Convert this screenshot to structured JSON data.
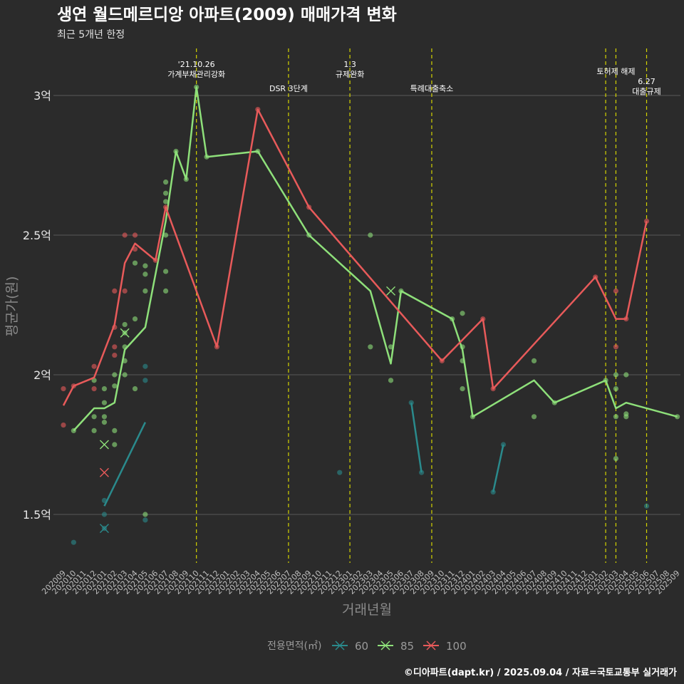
{
  "title": "생연 월드메르디앙 아파트(2009) 매매가격 변화",
  "subtitle": "최근 5개년 한정",
  "caption": "©디아파트(dapt.kr) / 2025.09.04 / 자료=국토교통부 실거래가",
  "colors": {
    "background": "#2b2b2b",
    "grid": "#5a5a5a",
    "s60": "#2a8a8c",
    "s85": "#8ee07a",
    "s100": "#e85a5a",
    "event": "#d4d400"
  },
  "chart_data": {
    "type": "line",
    "title": "생연 월드메르디앙 아파트(2009) 매매가격 변화",
    "subtitle": "최근 5개년 한정",
    "xlabel": "거래년월",
    "ylabel": "평균가(원)",
    "ylim": [
      1.3,
      3.2
    ],
    "categories": [
      "202009",
      "202010",
      "202011",
      "202012",
      "202101",
      "202102",
      "202103",
      "202104",
      "202105",
      "202106",
      "202107",
      "202108",
      "202109",
      "202110",
      "202111",
      "202112",
      "202201",
      "202202",
      "202203",
      "202204",
      "202205",
      "202206",
      "202207",
      "202208",
      "202209",
      "202210",
      "202211",
      "202212",
      "202301",
      "202302",
      "202303",
      "202304",
      "202305",
      "202306",
      "202307",
      "202308",
      "202309",
      "202310",
      "202311",
      "202312",
      "202401",
      "202402",
      "202403",
      "202404",
      "202405",
      "202406",
      "202407",
      "202408",
      "202409",
      "202410",
      "202411",
      "202412",
      "202501",
      "202502",
      "202503",
      "202504",
      "202505",
      "202506",
      "202507",
      "202508",
      "202509"
    ],
    "y_ticks": [
      {
        "value": 1.5,
        "label": "1.5억"
      },
      {
        "value": 2.0,
        "label": "2억"
      },
      {
        "value": 2.5,
        "label": "2.5억"
      },
      {
        "value": 3.0,
        "label": "3억"
      }
    ],
    "legend_title": "전용면적(㎡)",
    "series": [
      {
        "name": "60",
        "color": "#2a8a8c",
        "line": [
          [
            4,
            1.53
          ],
          [
            8,
            1.83
          ]
        ],
        "line2": [
          [
            34,
            1.9
          ],
          [
            35,
            1.65
          ]
        ],
        "line3": [
          [
            42,
            1.58
          ],
          [
            43,
            1.75
          ]
        ],
        "points": [
          [
            1,
            1.4
          ],
          [
            4,
            1.55
          ],
          [
            4,
            1.5
          ],
          [
            4,
            1.45
          ],
          [
            8,
            2.03
          ],
          [
            8,
            1.98
          ],
          [
            8,
            1.48
          ],
          [
            27,
            1.65
          ],
          [
            34,
            1.9
          ],
          [
            35,
            1.65
          ],
          [
            42,
            1.58
          ],
          [
            43,
            1.75
          ],
          [
            57,
            1.53
          ]
        ],
        "crosses": [
          [
            4,
            1.45
          ]
        ]
      },
      {
        "name": "85",
        "color": "#8ee07a",
        "line": [
          [
            1,
            1.8
          ],
          [
            3,
            1.88
          ],
          [
            4,
            1.88
          ],
          [
            5,
            1.9
          ],
          [
            6,
            2.09
          ],
          [
            8,
            2.17
          ],
          [
            10,
            2.55
          ],
          [
            11,
            2.8
          ],
          [
            12,
            2.7
          ],
          [
            13,
            3.03
          ],
          [
            14,
            2.78
          ],
          [
            19,
            2.8
          ],
          [
            24,
            2.5
          ],
          [
            30,
            2.3
          ],
          [
            32,
            2.04
          ],
          [
            33,
            2.3
          ],
          [
            38,
            2.2
          ],
          [
            39,
            2.09
          ],
          [
            40,
            1.85
          ],
          [
            46,
            1.98
          ],
          [
            48,
            1.9
          ],
          [
            53,
            1.98
          ],
          [
            54,
            1.88
          ],
          [
            55,
            1.9
          ],
          [
            60,
            1.85
          ]
        ],
        "points": [
          [
            1,
            1.8
          ],
          [
            3,
            1.98
          ],
          [
            3,
            1.85
          ],
          [
            3,
            1.8
          ],
          [
            4,
            1.95
          ],
          [
            4,
            1.9
          ],
          [
            4,
            1.85
          ],
          [
            4,
            1.83
          ],
          [
            5,
            2.0
          ],
          [
            5,
            1.96
          ],
          [
            5,
            1.8
          ],
          [
            5,
            1.75
          ],
          [
            6,
            2.18
          ],
          [
            6,
            2.15
          ],
          [
            6,
            2.1
          ],
          [
            6,
            2.05
          ],
          [
            6,
            2.0
          ],
          [
            7,
            2.4
          ],
          [
            7,
            2.2
          ],
          [
            7,
            1.95
          ],
          [
            8,
            2.39
          ],
          [
            8,
            2.36
          ],
          [
            8,
            2.3
          ],
          [
            8,
            1.5
          ],
          [
            10,
            2.69
          ],
          [
            10,
            2.65
          ],
          [
            10,
            2.62
          ],
          [
            10,
            2.5
          ],
          [
            10,
            2.37
          ],
          [
            10,
            2.3
          ],
          [
            11,
            2.8
          ],
          [
            12,
            2.7
          ],
          [
            13,
            3.03
          ],
          [
            14,
            2.78
          ],
          [
            19,
            2.8
          ],
          [
            24,
            2.5
          ],
          [
            30,
            2.5
          ],
          [
            30,
            2.1
          ],
          [
            32,
            2.1
          ],
          [
            32,
            1.98
          ],
          [
            33,
            2.3
          ],
          [
            38,
            2.2
          ],
          [
            39,
            2.22
          ],
          [
            39,
            2.1
          ],
          [
            39,
            2.05
          ],
          [
            39,
            1.95
          ],
          [
            40,
            1.85
          ],
          [
            46,
            2.05
          ],
          [
            46,
            1.85
          ],
          [
            48,
            1.9
          ],
          [
            53,
            1.98
          ],
          [
            54,
            2.0
          ],
          [
            54,
            1.95
          ],
          [
            54,
            1.85
          ],
          [
            54,
            1.7
          ],
          [
            55,
            2.0
          ],
          [
            55,
            1.86
          ],
          [
            55,
            1.85
          ],
          [
            60,
            1.85
          ]
        ],
        "crosses": [
          [
            4,
            1.75
          ],
          [
            6,
            2.15
          ],
          [
            32,
            2.3
          ]
        ]
      },
      {
        "name": "100",
        "color": "#e85a5a",
        "line": [
          [
            0,
            1.89
          ],
          [
            1,
            1.96
          ],
          [
            3,
            1.99
          ],
          [
            5,
            2.18
          ],
          [
            6,
            2.4
          ],
          [
            7,
            2.47
          ],
          [
            9,
            2.41
          ],
          [
            10,
            2.6
          ],
          [
            15,
            2.1
          ],
          [
            19,
            2.95
          ],
          [
            24,
            2.6
          ],
          [
            37,
            2.05
          ],
          [
            41,
            2.2
          ],
          [
            42,
            1.95
          ],
          [
            52,
            2.35
          ],
          [
            54,
            2.2
          ],
          [
            55,
            2.2
          ],
          [
            57,
            2.55
          ]
        ],
        "points": [
          [
            0,
            1.95
          ],
          [
            0,
            1.82
          ],
          [
            1,
            1.96
          ],
          [
            3,
            2.03
          ],
          [
            3,
            1.95
          ],
          [
            5,
            2.3
          ],
          [
            5,
            2.17
          ],
          [
            6,
            2.5
          ],
          [
            6,
            2.3
          ],
          [
            7,
            2.5
          ],
          [
            7,
            2.45
          ],
          [
            5,
            2.1
          ],
          [
            5,
            2.07
          ],
          [
            9,
            2.41
          ],
          [
            10,
            2.6
          ],
          [
            15,
            2.1
          ],
          [
            19,
            2.95
          ],
          [
            24,
            2.6
          ],
          [
            37,
            2.05
          ],
          [
            41,
            2.2
          ],
          [
            42,
            1.95
          ],
          [
            52,
            2.35
          ],
          [
            54,
            2.3
          ],
          [
            54,
            2.1
          ],
          [
            55,
            2.2
          ],
          [
            57,
            2.55
          ]
        ],
        "crosses": [
          [
            4,
            1.65
          ]
        ]
      }
    ],
    "events": [
      {
        "x": 13,
        "lines": [
          "'21.10.26",
          "가계부채관리강화"
        ],
        "row": 0
      },
      {
        "x": 22,
        "lines": [
          "DSR 3단계"
        ],
        "row": 2
      },
      {
        "x": 28,
        "lines": [
          "1.3",
          "규제완화"
        ],
        "row": 0
      },
      {
        "x": 36,
        "lines": [
          "특례대출축소"
        ],
        "row": 2
      },
      {
        "x": 53,
        "lines": [],
        "row": 0
      },
      {
        "x": 54,
        "lines": [
          "토허제 해제"
        ],
        "row": 1
      },
      {
        "x": 57,
        "lines": [
          "6.27",
          "대출규제"
        ],
        "row": 1.5
      }
    ]
  }
}
